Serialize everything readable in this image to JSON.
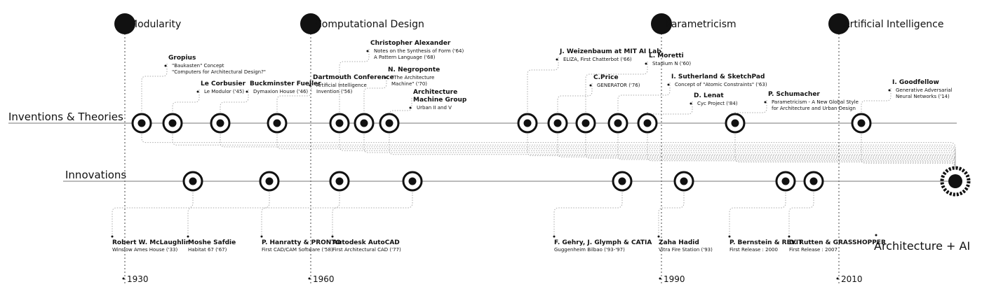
{
  "rows": {
    "theories_label": "Inventions & Theories",
    "innovations_label": "Innovations"
  },
  "eras": [
    {
      "label": "Modularity",
      "year": "1930"
    },
    {
      "label": "Computational Design",
      "year": "1960"
    },
    {
      "label": "Parametricism",
      "year": "1990"
    },
    {
      "label": "Artificial Intelligence",
      "year": "2010"
    }
  ],
  "theories": [
    {
      "title": "Gropius",
      "subs": [
        "\"Baukasten\" Concept",
        "\"Computers for Architectural Design?\""
      ]
    },
    {
      "title": "Le Corbusier",
      "subs": [
        "Le Modulor ('45)"
      ]
    },
    {
      "title": "Buckminster Fueller",
      "subs": [
        "Dymaxion House ('46)"
      ]
    },
    {
      "title": "Dartmouth Conference",
      "subs": [
        "Artificial Intelligence",
        "Invention ('56)"
      ]
    },
    {
      "title": "Christopher Alexander",
      "subs": [
        "Notes on the Synthesis of Form ('64)",
        "A Pattern Language ('68)"
      ]
    },
    {
      "title": "N. Negroponte",
      "subs": [
        "\"The Architecture",
        "Machine\" ('70)"
      ]
    },
    {
      "title": "Architecture",
      "title2": "Machine Group",
      "subs": [
        "Urban II and V"
      ]
    },
    {
      "title": "J. Weizenbaum at MIT AI Lab",
      "subs": [
        "ELIZA, First Chatterbot ('66)"
      ]
    },
    {
      "title": "C.Price",
      "subs": [
        "GENERATOR ('76)"
      ]
    },
    {
      "title": "L. Moretti",
      "subs": [
        "Stadium N ('60)"
      ]
    },
    {
      "title": "I. Sutherland & SketchPad",
      "subs": [
        "Concept of \"Atomic Constraints\" ('63)"
      ]
    },
    {
      "title": "D. Lenat",
      "subs": [
        "Cyc Project ('84)"
      ]
    },
    {
      "title": "P. Schumacher",
      "subs": [
        "Parametricism  -  A New Global Style",
        "for Architecture and Urban Design"
      ]
    },
    {
      "title": "I. Goodfellow",
      "subs": [
        "Generative Adversarial",
        "Neural Networks ('14)"
      ]
    }
  ],
  "innovations": [
    {
      "title": "Robert W. McLaughlin",
      "sub": "Winslow Ames House ('33)"
    },
    {
      "title": "Moshe Safdie",
      "sub": "Habitat 67 ('67)"
    },
    {
      "title": "P. Hanratty & PRONTO",
      "sub": "First CAD/CAM Software ('58)"
    },
    {
      "title": "Autodesk AutoCAD",
      "sub": "First Architectural CAD ('77)"
    },
    {
      "title": "F. Gehry, J. Glymph & CATIA",
      "sub": "Guggenheim Bilbao ('93-'97)"
    },
    {
      "title": "Zaha Hadid",
      "sub": "Vitra Fire Station ('93)"
    },
    {
      "title": "P. Bernstein & REVIT",
      "sub": "First Release : 2000"
    },
    {
      "title": "D. Rutten & GRASSHOPPER",
      "sub": "First Release : 2007"
    }
  ],
  "final_label": "Architecture + AI"
}
